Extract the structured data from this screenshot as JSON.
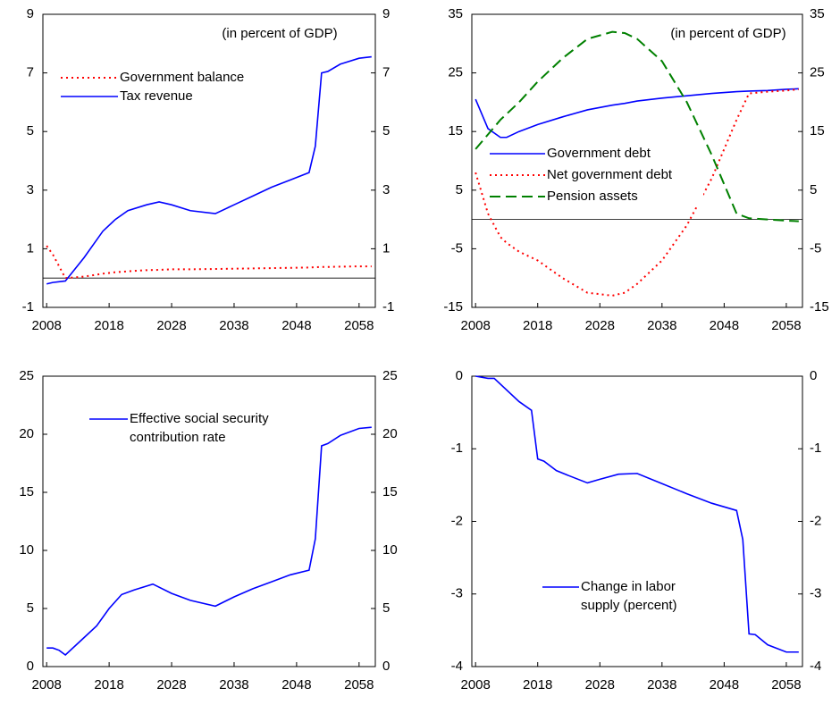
{
  "chart_data": [
    {
      "type": "line",
      "annotation": "(in percent of GDP)",
      "x": [
        2008,
        2009,
        2011,
        2014,
        2017,
        2019,
        2021,
        2024,
        2026,
        2028,
        2031,
        2035,
        2038,
        2041,
        2044,
        2047,
        2050,
        2051,
        2052,
        2053,
        2055,
        2058,
        2060
      ],
      "series": [
        {
          "name": "Government balance",
          "color": "#ff0000",
          "dash": "dotted",
          "values": [
            1.1,
            0.8,
            0.0,
            0.05,
            0.15,
            0.2,
            0.23,
            0.27,
            0.28,
            0.3,
            0.3,
            0.31,
            0.32,
            0.33,
            0.34,
            0.35,
            0.36,
            0.37,
            0.38,
            0.38,
            0.39,
            0.4,
            0.4
          ]
        },
        {
          "name": "Tax revenue",
          "color": "#0000ff",
          "dash": "solid",
          "values": [
            -0.2,
            -0.15,
            -0.1,
            0.7,
            1.6,
            2.0,
            2.3,
            2.5,
            2.6,
            2.5,
            2.3,
            2.2,
            2.5,
            2.8,
            3.1,
            3.35,
            3.6,
            4.5,
            7.0,
            7.05,
            7.3,
            7.5,
            7.55
          ]
        }
      ],
      "reference_line": 0,
      "xlim": [
        2007.4,
        2060.6
      ],
      "xticks": [
        2008,
        2018,
        2028,
        2038,
        2048,
        2058
      ],
      "ylim": [
        -1,
        9
      ],
      "yticks": [
        -1,
        1,
        3,
        5,
        7,
        9
      ]
    },
    {
      "type": "line",
      "annotation": "(in percent of GDP)",
      "x": [
        2008,
        2010,
        2012,
        2013,
        2015,
        2018,
        2022,
        2026,
        2030,
        2032,
        2034,
        2038,
        2042,
        2046,
        2050,
        2052,
        2055,
        2058,
        2060
      ],
      "series": [
        {
          "name": "Government debt",
          "color": "#0000ff",
          "dash": "solid",
          "values": [
            20.5,
            15.5,
            14.0,
            14.0,
            15.0,
            16.2,
            17.5,
            18.7,
            19.5,
            19.8,
            20.2,
            20.7,
            21.1,
            21.5,
            21.8,
            21.9,
            22.0,
            22.2,
            22.3
          ]
        },
        {
          "name": "Net government debt",
          "color": "#ff0000",
          "dash": "dotted",
          "values": [
            8,
            1,
            -3,
            -4,
            -5.5,
            -7,
            -10,
            -12.5,
            -13,
            -12.5,
            -11,
            -7,
            -1,
            7,
            17,
            21.5,
            21.8,
            22.0,
            22.2
          ]
        },
        {
          "name": "Pension assets",
          "color": "#008000",
          "dash": "dashed",
          "values": [
            12,
            14.5,
            17,
            18,
            20,
            23.5,
            27.5,
            30.8,
            32,
            31.8,
            30.8,
            27,
            20,
            11,
            1,
            0.2,
            0,
            -0.2,
            -0.3
          ]
        }
      ],
      "reference_line": 0,
      "xlim": [
        2007.4,
        2060.6
      ],
      "xticks": [
        2008,
        2018,
        2028,
        2038,
        2048,
        2058
      ],
      "ylim": [
        -15,
        35
      ],
      "yticks": [
        -15,
        -5,
        5,
        15,
        25,
        35
      ]
    },
    {
      "type": "line",
      "x": [
        2008,
        2009,
        2010,
        2011,
        2014,
        2016,
        2018,
        2020,
        2022,
        2025,
        2028,
        2031,
        2035,
        2038,
        2041,
        2044,
        2047,
        2050,
        2051,
        2052,
        2053,
        2055,
        2058,
        2060
      ],
      "series": [
        {
          "name": "Effective social security contribution rate",
          "color": "#0000ff",
          "dash": "solid",
          "values": [
            1.6,
            1.6,
            1.4,
            1.0,
            2.5,
            3.5,
            5.0,
            6.2,
            6.6,
            7.1,
            6.3,
            5.7,
            5.2,
            6.0,
            6.7,
            7.3,
            7.9,
            8.3,
            11,
            19,
            19.2,
            19.9,
            20.5,
            20.6
          ]
        }
      ],
      "xlim": [
        2007.4,
        2060.6
      ],
      "xticks": [
        2008,
        2018,
        2028,
        2038,
        2048,
        2058
      ],
      "ylim": [
        0,
        25
      ],
      "yticks": [
        0,
        5,
        10,
        15,
        20,
        25
      ]
    },
    {
      "type": "line",
      "x": [
        2008,
        2010,
        2011,
        2015,
        2017,
        2018,
        2019,
        2021,
        2023,
        2026,
        2028,
        2031,
        2034,
        2038,
        2042,
        2046,
        2050,
        2051,
        2052,
        2053,
        2055,
        2058,
        2060
      ],
      "series": [
        {
          "name": "Change in labor supply (percent)",
          "color": "#0000ff",
          "dash": "solid",
          "values": [
            0,
            -0.03,
            -0.03,
            -0.35,
            -0.47,
            -1.14,
            -1.17,
            -1.3,
            -1.37,
            -1.47,
            -1.42,
            -1.35,
            -1.34,
            -1.48,
            -1.62,
            -1.75,
            -1.85,
            -2.25,
            -3.55,
            -3.56,
            -3.7,
            -3.8,
            -3.8
          ]
        }
      ],
      "xlim": [
        2007.4,
        2060.6
      ],
      "xticks": [
        2008,
        2018,
        2028,
        2038,
        2048,
        2058
      ],
      "ylim": [
        -4,
        0
      ],
      "yticks": [
        -4,
        -3,
        -2,
        -1,
        0
      ]
    }
  ]
}
